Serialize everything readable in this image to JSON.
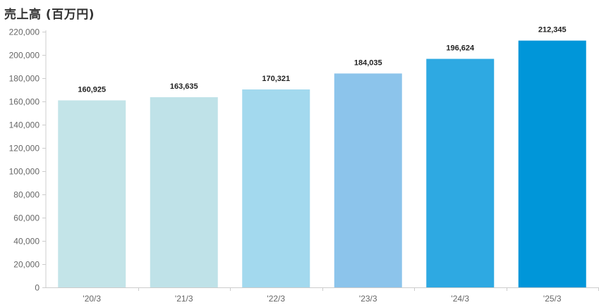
{
  "chart_data": {
    "type": "bar",
    "title": "売上高 (百万円)",
    "categories": [
      "'20/3",
      "'21/3",
      "'22/3",
      "'23/3",
      "'24/3",
      "'25/3"
    ],
    "values": [
      160925,
      163635,
      170321,
      184035,
      196624,
      212345
    ],
    "value_labels": [
      "160,925",
      "163,635",
      "170,321",
      "184,035",
      "196,624",
      "212,345"
    ],
    "bar_colors": [
      "#c3e4e8",
      "#bfe2e8",
      "#a3d9ee",
      "#8cc4eb",
      "#2ea9e2",
      "#0096d9"
    ],
    "ylim": [
      0,
      220000
    ],
    "yticks": [
      0,
      20000,
      40000,
      60000,
      80000,
      100000,
      120000,
      140000,
      160000,
      180000,
      200000,
      220000
    ],
    "ytick_labels": [
      "0",
      "20,000",
      "40,000",
      "60,000",
      "80,000",
      "100,000",
      "120,000",
      "140,000",
      "160,000",
      "180,000",
      "200,000",
      "220,000"
    ],
    "grid": false,
    "xlabel": "",
    "ylabel": ""
  }
}
